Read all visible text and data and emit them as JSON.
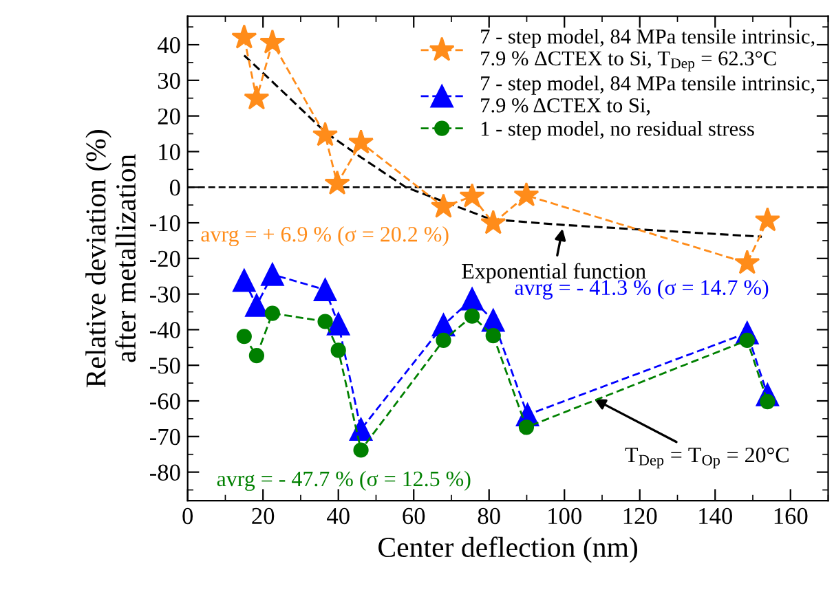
{
  "chart_data": {
    "type": "line",
    "xlabel": "Center deflection (nm)",
    "ylabel": "Relative deviation (%)\nafter metallization",
    "xlim": [
      0,
      170
    ],
    "xticks": [
      0,
      20,
      40,
      60,
      80,
      100,
      120,
      140,
      160
    ],
    "ylim": [
      -88,
      48
    ],
    "yticks": [
      -80,
      -70,
      -60,
      -50,
      -40,
      -30,
      -20,
      -10,
      0,
      10,
      20,
      30,
      40
    ],
    "series": [
      {
        "name": "7 - step model, 84 MPa tensile intrinsic,\n7.9 % ΔCTEX to Si, T$_{Dep}$ = 62.3°C",
        "color": "#ff8c1a",
        "marker": "star",
        "line_style": "dashed",
        "x": [
          15.0,
          18.3,
          22.5,
          36.5,
          39.7,
          46.0,
          67.9,
          75.5,
          81.1,
          89.9,
          148.5,
          153.9
        ],
        "values": [
          42.0,
          24.9,
          40.6,
          14.6,
          1.0,
          12.5,
          -5.5,
          -2.6,
          -10.1,
          -2.3,
          -21.3,
          -9.3
        ]
      },
      {
        "name": "7 - step model, 84 MPa tensile intrinsic,\n7.9 % ΔCTEX to Si,",
        "color": "#0000ff",
        "marker": "triangle",
        "line_style": "dashed",
        "x": [
          15.0,
          18.3,
          22.5,
          36.5,
          40.0,
          46.0,
          67.9,
          75.5,
          81.1,
          90.2,
          148.5,
          153.9
        ],
        "values": [
          -26.2,
          -33.2,
          -24.5,
          -28.8,
          -38.4,
          -68.0,
          -38.7,
          -31.4,
          -37.4,
          -63.9,
          -40.9,
          -58.3
        ]
      },
      {
        "name": "1 - step model, no residual stress",
        "color": "#008000",
        "marker": "circle",
        "line_style": "dashed",
        "x": [
          15.0,
          18.3,
          22.5,
          36.5,
          40.0,
          46.0,
          67.9,
          75.5,
          81.1,
          89.9,
          148.5,
          153.9
        ],
        "values": [
          -41.9,
          -47.3,
          -35.4,
          -37.7,
          -45.8,
          -73.8,
          -43.0,
          -36.2,
          -41.7,
          -67.4,
          -43.0,
          -60.2
        ]
      },
      {
        "color": "#000000",
        "marker": "none",
        "line_style": "dashed",
        "x": [
          15.0,
          22.4,
          36.5,
          46.0,
          57.9,
          80.4,
          99.7,
          152.4
        ],
        "values": [
          37.0,
          29.7,
          15.5,
          8.4,
          0.0,
          -9.0,
          -10.6,
          -13.9
        ]
      }
    ],
    "ref_lines": [
      {
        "axis": "y",
        "value": 0,
        "color": "#000000",
        "line_style": "dashed"
      }
    ],
    "annotations": [
      "avrg = + 6.9 % (σ = 20.2 %)",
      "avrg = - 41.3 % (σ = 14.7 %)",
      "avrg = - 47.7 % (σ = 12.5 %)",
      {
        "text": "Exponential function",
        "x": 99.7,
        "y": -10.6
      },
      {
        "text": "T$_{Dep}$ = T$_{Op}$ = 20°C",
        "x": 107,
        "y": -59
      }
    ],
    "legend": "top right",
    "grid": false
  }
}
